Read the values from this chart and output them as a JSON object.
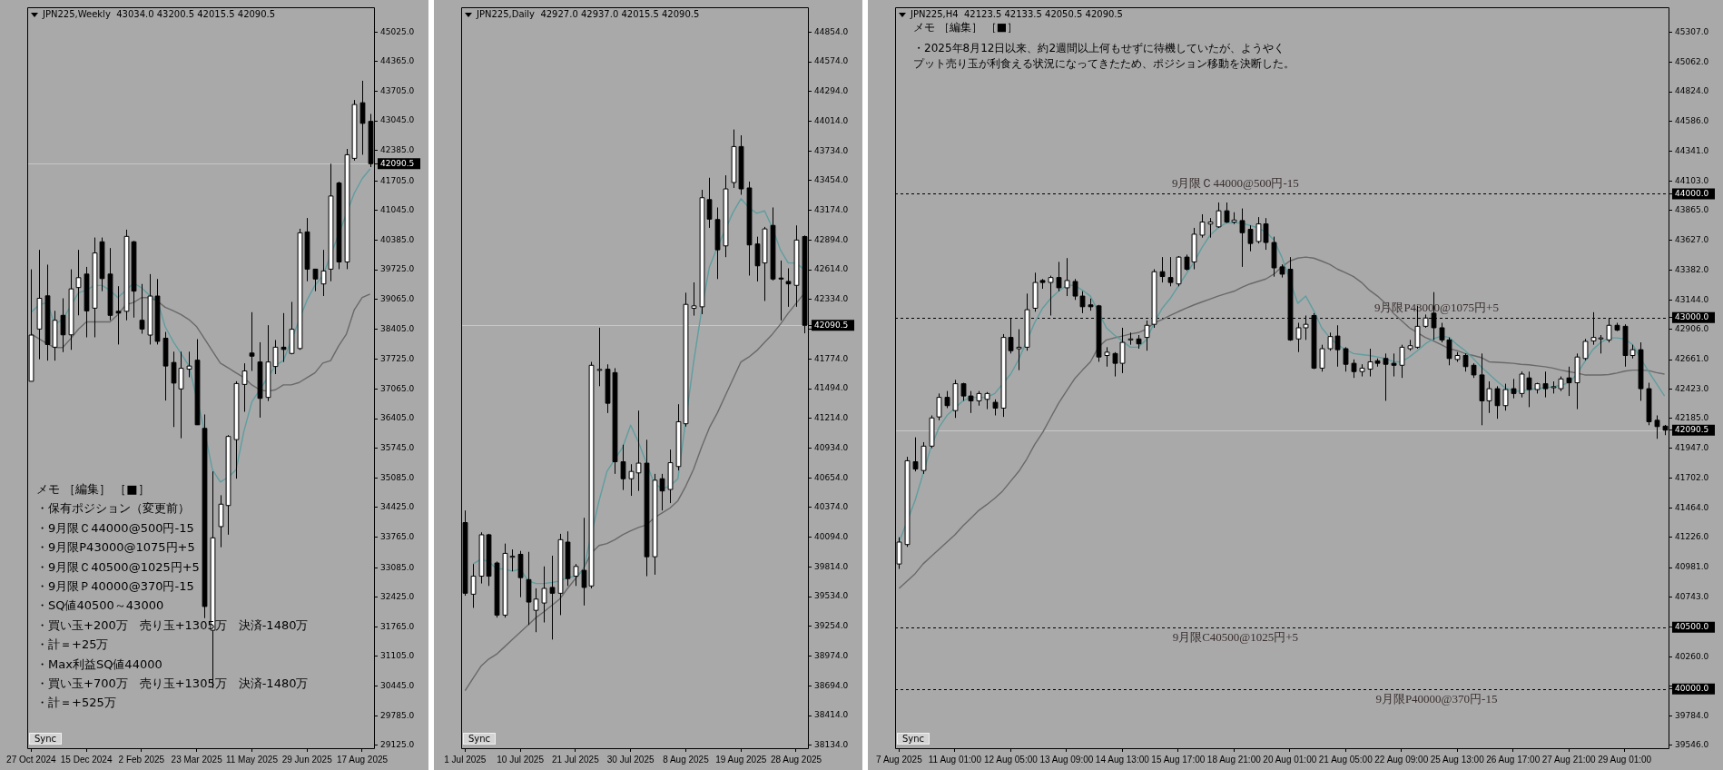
{
  "chart_data": [
    {
      "type": "candlestick",
      "title": "JPN225,Weekly  43034.0 43200.5 42015.5 42090.5",
      "categories": [
        "27 Oct 2024",
        null,
        null,
        null,
        null,
        null,
        null,
        "15 Dec 2024",
        null,
        null,
        null,
        null,
        null,
        null,
        "2 Feb 2025",
        null,
        null,
        null,
        null,
        null,
        null,
        "23 Mar 2025",
        null,
        null,
        null,
        null,
        null,
        null,
        "11 May 2025",
        null,
        null,
        null,
        null,
        null,
        null,
        "29 Jun 2025",
        null,
        null,
        null,
        null,
        null,
        null,
        "17 Aug 2025",
        null
      ],
      "ohlc": [
        [
          37240,
          39735,
          37240,
          38270
        ],
        [
          38405,
          40170,
          37730,
          39090
        ],
        [
          39145,
          39840,
          37700,
          38060
        ],
        [
          38000,
          38810,
          37700,
          38600
        ],
        [
          38710,
          39090,
          37890,
          38275
        ],
        [
          38275,
          39735,
          37940,
          39300
        ],
        [
          39330,
          40170,
          38710,
          39550
        ],
        [
          39630,
          39790,
          38220,
          38810
        ],
        [
          38870,
          40445,
          38220,
          40100
        ],
        [
          40350,
          40445,
          39250,
          39530
        ],
        [
          39630,
          40210,
          38600,
          38710
        ],
        [
          38800,
          39360,
          38060,
          38760
        ],
        [
          38800,
          40620,
          38600,
          40470
        ],
        [
          40350,
          40370,
          38660,
          39250
        ],
        [
          38600,
          39410,
          38300,
          38405
        ],
        [
          38270,
          39630,
          38060,
          39140
        ],
        [
          39140,
          39520,
          38060,
          38130
        ],
        [
          38200,
          38340,
          36810,
          37580
        ],
        [
          37660,
          37900,
          36220,
          37200
        ],
        [
          37070,
          37900,
          35970,
          37530
        ],
        [
          37510,
          37900,
          37330,
          37580
        ],
        [
          37710,
          38180,
          36270,
          36270
        ],
        [
          36190,
          36500,
          31960,
          32220
        ],
        [
          31690,
          35230,
          30400,
          33750
        ],
        [
          34000,
          34700,
          33540,
          34500
        ],
        [
          34470,
          36040,
          33820,
          36010
        ],
        [
          35940,
          37240,
          35070,
          37190
        ],
        [
          37170,
          37640,
          36560,
          37470
        ],
        [
          37870,
          38780,
          37470,
          37800
        ],
        [
          37670,
          38110,
          36430,
          36860
        ],
        [
          36880,
          38490,
          36800,
          37670
        ],
        [
          37570,
          38160,
          37400,
          38000
        ],
        [
          38000,
          38760,
          37670,
          37950
        ],
        [
          37860,
          39010,
          37840,
          38400
        ],
        [
          37970,
          40640,
          37940,
          40550
        ],
        [
          40570,
          40880,
          39470,
          39740
        ],
        [
          39740,
          39740,
          39250,
          39520
        ],
        [
          39410,
          40170,
          39140,
          39700
        ],
        [
          39740,
          42090,
          39470,
          41370
        ],
        [
          41660,
          41690,
          39740,
          39900
        ],
        [
          39900,
          42420,
          39740,
          42290
        ],
        [
          42210,
          43510,
          42160,
          43410
        ],
        [
          43450,
          43940,
          42290,
          42990
        ],
        [
          43034,
          43200.5,
          42015.5,
          42090.5
        ]
      ],
      "series": [
        {
          "type": "line",
          "color": "#5f9ea0",
          "values": [
            38782,
            38944,
            38998,
            38511,
            38619,
            null,
            39215,
            39269,
            39377,
            39377,
            39269,
            39106,
            null,
            39431,
            39323,
            39161,
            39052,
            38457,
            38133,
            37862,
            37592,
            null,
            36131,
            35265,
            34995,
            35103,
            35265,
            36131,
            36780,
            null,
            null,
            37592,
            37700,
            null,
            null,
            39052,
            39377,
            39593,
            null,
            null,
            null,
            41433,
            41757,
            41974
          ]
        },
        {
          "type": "line",
          "color": "#696969",
          "values": [
            38295,
            38187,
            38079,
            37992,
            37992,
            38187,
            38403,
            38565,
            38565,
            38565,
            38565,
            38728,
            38944,
            38998,
            39106,
            39106,
            39031,
            38890,
            38814,
            38728,
            38619,
            38457,
            38187,
            37916,
            37646,
            37538,
            37429,
            37321,
            37159,
            37051,
            37018,
            37051,
            37159,
            37159,
            37213,
            37321,
            37429,
            37646,
            37700,
            38025,
            38295,
            38836,
            39106,
            39182
          ]
        }
      ],
      "ylim": [
        29060,
        45570
      ],
      "yticks": [
        {
          "value": 45025,
          "label": "45025.0"
        },
        {
          "value": 44365,
          "label": "44365.0"
        },
        {
          "value": 43705,
          "label": "43705.0"
        },
        {
          "value": 43045,
          "label": "43045.0"
        },
        {
          "value": 42385,
          "label": "42385.0"
        },
        {
          "value": 42090.5,
          "label": "42090.5"
        },
        {
          "value": 41705,
          "label": "41705.0"
        },
        {
          "value": 41045,
          "label": "41045.0"
        },
        {
          "value": 40385,
          "label": "40385.0"
        },
        {
          "value": 39725,
          "label": "39725.0"
        },
        {
          "value": 39065,
          "label": "39065.0"
        },
        {
          "value": 38405,
          "label": "38405.0"
        },
        {
          "value": 37725,
          "label": "37725.0"
        },
        {
          "value": 37065,
          "label": "37065.0"
        },
        {
          "value": 36405,
          "label": "36405.0"
        },
        {
          "value": 35745,
          "label": "35745.0"
        },
        {
          "value": 35085,
          "label": "35085.0"
        },
        {
          "value": 34425,
          "label": "34425.0"
        },
        {
          "value": 33765,
          "label": "33765.0"
        },
        {
          "value": 33085,
          "label": "33085.0"
        },
        {
          "value": 32425,
          "label": "32425.0"
        },
        {
          "value": 31765,
          "label": "31765.0"
        },
        {
          "value": 31105,
          "label": "31105.0"
        },
        {
          "value": 30445,
          "label": "30445.0"
        },
        {
          "value": 29785,
          "label": "29785.0"
        },
        {
          "value": 29125,
          "label": "29125.0"
        }
      ],
      "ref_lines": [
        {
          "axis": "y",
          "value": 42090.5,
          "color": "#c8c8c8",
          "line_style": "solid"
        }
      ],
      "annotations": [
        "メモ ［編集］ ［■］",
        "・保有ポジション（変更前）",
        "・9月限Ｃ44000@500円-15",
        "・9月限P43000@1075円+5",
        "・9月限Ｃ40500@1025円+5",
        "・9月限Ｐ40000@370円-15",
        "・SQ値40500～43000",
        "・買い玉+200万　売り玉+1305万　決済-1480万",
        "・計＝+25万",
        "・Max利益SQ値44000",
        "・買い玉+700万　売り玉+1305万　決済-1480万",
        "・計＝+525万",
        "Sync"
      ]
    },
    {
      "type": "candlestick",
      "title": "JPN225,Daily  42927.0 42937.0 42015.5 42090.5",
      "categories": [
        "1 Jul 2025",
        null,
        null,
        null,
        null,
        null,
        null,
        "10 Jul 2025",
        null,
        null,
        null,
        null,
        null,
        null,
        "21 Jul 2025",
        null,
        null,
        null,
        null,
        null,
        null,
        "30 Jul 2025",
        null,
        null,
        null,
        null,
        null,
        null,
        "8 Aug 2025",
        null,
        null,
        null,
        null,
        null,
        null,
        "19 Aug 2025",
        null,
        null,
        null,
        null,
        null,
        null,
        "28 Aug 2025",
        null
      ],
      "ohlc": [
        [
          40232,
          40346,
          39543,
          39566
        ],
        [
          39557,
          39841,
          39428,
          39727
        ],
        [
          39727,
          40140,
          39658,
          40117
        ],
        [
          40117,
          40126,
          39635,
          39727
        ],
        [
          39851,
          39865,
          39337,
          39360
        ],
        [
          39360,
          40034,
          39337,
          39942
        ],
        [
          39905,
          39979,
          39773,
          39915
        ],
        [
          39933,
          39965,
          39529,
          39713
        ],
        [
          39695,
          39956,
          39268,
          39483
        ],
        [
          39405,
          39612,
          39199,
          39511
        ],
        [
          39474,
          39819,
          39291,
          39612
        ],
        [
          39621,
          39920,
          39130,
          39566
        ],
        [
          39566,
          40126,
          39360,
          40071
        ],
        [
          40048,
          40149,
          39635,
          39704
        ],
        [
          39727,
          39841,
          39635,
          39819
        ],
        [
          39782,
          40277,
          39451,
          39621
        ],
        [
          39635,
          41746,
          39612,
          41714
        ],
        [
          41670,
          42068,
          41517,
          41675
        ],
        [
          41677,
          41723,
          41264,
          41356
        ],
        [
          41645,
          41687,
          40691,
          40805
        ],
        [
          40805,
          40966,
          40539,
          40645
        ],
        [
          40645,
          40782,
          40484,
          40714
        ],
        [
          40700,
          41287,
          40530,
          40792
        ],
        [
          40792,
          41012,
          39727,
          39910
        ],
        [
          39910,
          40691,
          39741,
          40631
        ],
        [
          40645,
          40691,
          40346,
          40530
        ],
        [
          40544,
          40920,
          40415,
          40796
        ],
        [
          40760,
          41347,
          40723,
          41182
        ],
        [
          41163,
          42398,
          41136,
          42288
        ],
        [
          42251,
          42495,
          42182,
          42274
        ],
        [
          42265,
          43367,
          42196,
          43293
        ],
        [
          43275,
          43481,
          43009,
          43091
        ],
        [
          43087,
          43201,
          42527,
          42802
        ],
        [
          42839,
          43504,
          42733,
          43376
        ],
        [
          43436,
          43936,
          43385,
          43775
        ],
        [
          43775,
          43881,
          43321,
          43376
        ],
        [
          43385,
          43445,
          42559,
          42848
        ],
        [
          42857,
          42926,
          42504,
          42651
        ],
        [
          42678,
          43018,
          42320,
          42999
        ],
        [
          43032,
          43201,
          42513,
          42527
        ],
        [
          42536,
          42701,
          42137,
          42527
        ],
        [
          42504,
          42628,
          42265,
          42481
        ],
        [
          42467,
          43032,
          42265,
          42894
        ],
        [
          42927,
          42937,
          42015.5,
          42090.5
        ]
      ],
      "series": [
        {
          "type": "line",
          "color": "#5f9ea0",
          "values": [
            null,
            39842,
            39887,
            39864,
            39796,
            39796,
            39773,
            39796,
            39681,
            39658,
            39658,
            39667,
            39681,
            39713,
            39727,
            39784,
            null,
            40438,
            40714,
            null,
            40943,
            41150,
            40989,
            null,
            40599,
            40553,
            40576,
            40645,
            null,
            41746,
            42228,
            42641,
            42825,
            null,
            43155,
            43284,
            43201,
            43146,
            43169,
            43009,
            42802,
            42678,
            42678,
            42618
          ]
        },
        {
          "type": "line",
          "color": "#696969",
          "values": [
            38648,
            38763,
            38878,
            38946,
            38992,
            39061,
            39130,
            39199,
            39268,
            39337,
            39392,
            39451,
            39511,
            39612,
            39704,
            39796,
            39943,
            40016,
            40034,
            40071,
            40117,
            40154,
            40186,
            40209,
            40277,
            40323,
            40369,
            40438,
            40576,
            40737,
            40943,
            41127,
            41264,
            41425,
            41586,
            41746,
            41792,
            41852,
            41930,
            42008,
            42100,
            42205,
            42297,
            42389
          ]
        }
      ],
      "ylim": [
        38106,
        45084
      ],
      "yticks": [
        {
          "value": 44854,
          "label": "44854.0"
        },
        {
          "value": 44574,
          "label": "44574.0"
        },
        {
          "value": 44294,
          "label": "44294.0"
        },
        {
          "value": 44014,
          "label": "44014.0"
        },
        {
          "value": 43734,
          "label": "43734.0"
        },
        {
          "value": 43454,
          "label": "43454.0"
        },
        {
          "value": 43174,
          "label": "43174.0"
        },
        {
          "value": 42894,
          "label": "42894.0"
        },
        {
          "value": 42614,
          "label": "42614.0"
        },
        {
          "value": 42334,
          "label": "42334.0"
        },
        {
          "value": 42090.5,
          "label": "42090.5"
        },
        {
          "value": 42054,
          "label": null
        },
        {
          "value": 41774,
          "label": "41774.0"
        },
        {
          "value": 41494,
          "label": "41494.0"
        },
        {
          "value": 41214,
          "label": "41214.0"
        },
        {
          "value": 40934,
          "label": "40934.0"
        },
        {
          "value": 40654,
          "label": "40654.0"
        },
        {
          "value": 40374,
          "label": "40374.0"
        },
        {
          "value": 40094,
          "label": "40094.0"
        },
        {
          "value": 39814,
          "label": "39814.0"
        },
        {
          "value": 39534,
          "label": "39534.0"
        },
        {
          "value": 39254,
          "label": "39254.0"
        },
        {
          "value": 38974,
          "label": "38974.0"
        },
        {
          "value": 38694,
          "label": "38694.0"
        },
        {
          "value": 38414,
          "label": "38414.0"
        },
        {
          "value": 38134,
          "label": "38134.0"
        }
      ],
      "ref_lines": [
        {
          "axis": "y",
          "value": 42090.5,
          "color": "#c8c8c8",
          "line_style": "solid"
        }
      ],
      "annotations": [
        "Sync"
      ]
    },
    {
      "type": "candlestick",
      "title": "JPN225,H4  42123.5 42133.5 42050.5 42090.5",
      "categories": [
        "7 Aug 2025",
        null,
        null,
        null,
        null,
        null,
        null,
        "11 Aug 01:00",
        null,
        null,
        null,
        null,
        null,
        null,
        "12 Aug 05:00",
        null,
        null,
        null,
        null,
        null,
        null,
        "13 Aug 09:00",
        null,
        null,
        null,
        null,
        null,
        null,
        "14 Aug 13:00",
        null,
        null,
        null,
        null,
        null,
        null,
        "15 Aug 17:00",
        null,
        null,
        null,
        null,
        null,
        null,
        "18 Aug 21:00",
        null,
        null,
        null,
        null,
        null,
        null,
        "20 Aug 01:00",
        null,
        null,
        null,
        null,
        null,
        null,
        "21 Aug 05:00",
        null,
        null,
        null,
        null,
        null,
        null,
        "22 Aug 09:00",
        null,
        null,
        null,
        null,
        null,
        null,
        "25 Aug 13:00",
        null,
        null,
        null,
        null,
        null,
        null,
        "26 Aug 17:00",
        null,
        null,
        null,
        null,
        null,
        null,
        "27 Aug 21:00",
        null,
        null,
        null,
        null,
        null,
        null,
        "29 Aug 01:00",
        null,
        null,
        null,
        null,
        null
      ],
      "ohlc": [
        [
          41010,
          41226,
          40970,
          41187
        ],
        [
          41167,
          41876,
          41148,
          41844
        ],
        [
          41836,
          42033,
          41758,
          41777
        ],
        [
          41765,
          41994,
          41738,
          41962
        ],
        [
          41962,
          42210,
          41946,
          42190
        ],
        [
          42198,
          42387,
          42171,
          42356
        ],
        [
          42356,
          42407,
          42269,
          42289
        ],
        [
          42249,
          42497,
          42190,
          42466
        ],
        [
          42466,
          42474,
          42328,
          42367
        ],
        [
          42367,
          42407,
          42230,
          42328
        ],
        [
          42328,
          42407,
          42289,
          42387
        ],
        [
          42340,
          42399,
          42261,
          42387
        ],
        [
          42316,
          42340,
          42210,
          42269
        ],
        [
          42269,
          42867,
          42198,
          42840
        ],
        [
          42840,
          42997,
          42710,
          42733
        ],
        [
          42749,
          42906,
          42576,
          42761
        ],
        [
          42761,
          43194,
          42733,
          43064
        ],
        [
          43076,
          43363,
          43048,
          43284
        ],
        [
          43300,
          43312,
          43233,
          43284
        ],
        [
          43284,
          43339,
          43017,
          43324
        ],
        [
          43324,
          43450,
          43213,
          43241
        ],
        [
          43241,
          43481,
          43174,
          43300
        ],
        [
          43292,
          43312,
          43143,
          43174
        ],
        [
          43174,
          43213,
          43036,
          43088
        ],
        [
          43103,
          43154,
          43056,
          43088
        ],
        [
          43095,
          43103,
          42643,
          42682
        ],
        [
          42694,
          42761,
          42604,
          42721
        ],
        [
          42710,
          42721,
          42525,
          42631
        ],
        [
          42631,
          42918,
          42552,
          42800
        ],
        [
          42820,
          42879,
          42781,
          42828
        ],
        [
          42828,
          42859,
          42749,
          42788
        ],
        [
          42840,
          42977,
          42733,
          42938
        ],
        [
          42946,
          43391,
          42918,
          43371
        ],
        [
          43371,
          43489,
          43284,
          43332
        ],
        [
          43324,
          43489,
          43253,
          43284
        ],
        [
          43272,
          43497,
          43253,
          43489
        ],
        [
          43489,
          43509,
          43379,
          43391
        ],
        [
          43450,
          43725,
          43391,
          43674
        ],
        [
          43666,
          43835,
          43646,
          43772
        ],
        [
          43756,
          43804,
          43646,
          43772
        ],
        [
          43733,
          43930,
          43725,
          43863
        ],
        [
          43863,
          43930,
          43764,
          43772
        ],
        [
          43772,
          43851,
          43756,
          43788
        ],
        [
          43784,
          43882,
          43410,
          43686
        ],
        [
          43713,
          43745,
          43536,
          43599
        ],
        [
          43615,
          43812,
          43599,
          43757
        ],
        [
          43757,
          43804,
          43548,
          43607
        ],
        [
          43607,
          43654,
          43331,
          43402
        ],
        [
          43410,
          43430,
          43324,
          43351
        ],
        [
          43391,
          43489,
          42812,
          42820
        ],
        [
          42828,
          42958,
          42722,
          42918
        ],
        [
          42918,
          43017,
          42820,
          42946
        ],
        [
          43017,
          43036,
          42584,
          42592
        ],
        [
          42592,
          42781,
          42564,
          42749
        ],
        [
          42749,
          42879,
          42733,
          42847
        ],
        [
          42851,
          42938,
          42604,
          42741
        ],
        [
          42749,
          42761,
          42564,
          42623
        ],
        [
          42631,
          42662,
          42513,
          42564
        ],
        [
          42564,
          42623,
          42525,
          42592
        ],
        [
          42584,
          42749,
          42525,
          42643
        ],
        [
          42651,
          42670,
          42604,
          42631
        ],
        [
          42670,
          42710,
          42328,
          42623
        ],
        [
          42631,
          42710,
          42525,
          42615
        ],
        [
          42615,
          42781,
          42513,
          42761
        ],
        [
          42749,
          42820,
          42733,
          42773
        ],
        [
          42761,
          43095,
          42749,
          42930
        ],
        [
          42930,
          43025,
          42918,
          42997
        ],
        [
          43036,
          43206,
          42820,
          42918
        ],
        [
          42918,
          42958,
          42800,
          42820
        ],
        [
          42820,
          42840,
          42615,
          42670
        ],
        [
          42662,
          42722,
          42643,
          42694
        ],
        [
          42694,
          42710,
          42564,
          42604
        ],
        [
          42615,
          42631,
          42513,
          42537
        ],
        [
          42537,
          42710,
          42131,
          42328
        ],
        [
          42328,
          42485,
          42230,
          42426
        ],
        [
          42426,
          42446,
          42183,
          42289
        ],
        [
          42289,
          42466,
          42249,
          42419
        ],
        [
          42426,
          42505,
          42348,
          42387
        ],
        [
          42387,
          42564,
          42356,
          42544
        ],
        [
          42513,
          42564,
          42277,
          42419
        ],
        [
          42419,
          42474,
          42387,
          42466
        ],
        [
          42466,
          42564,
          42356,
          42426
        ],
        [
          42434,
          42485,
          42387,
          42442
        ],
        [
          42426,
          42525,
          42407,
          42505
        ],
        [
          42513,
          42604,
          42367,
          42474
        ],
        [
          42474,
          42710,
          42261,
          42682
        ],
        [
          42670,
          42828,
          42655,
          42808
        ],
        [
          42812,
          43044,
          42781,
          42840
        ],
        [
          42828,
          42859,
          42710,
          42836
        ],
        [
          42820,
          42997,
          42800,
          42938
        ],
        [
          42938,
          42958,
          42891,
          42899
        ],
        [
          42930,
          42946,
          42604,
          42694
        ],
        [
          42694,
          42781,
          42670,
          42741
        ],
        [
          42741,
          42800,
          42328,
          42426
        ],
        [
          42426,
          42474,
          42131,
          42159
        ],
        [
          42171,
          42210,
          42021,
          42120
        ],
        [
          42123.5,
          42133.5,
          42050.5,
          42090.5
        ]
      ],
      "series": [
        {
          "type": "line",
          "color": "#5f9ea0",
          "values": [
            41187,
            null,
            41521,
            41738,
            41954,
            42112,
            42210,
            42269,
            42328,
            42356,
            42356,
            42356,
            42387,
            42466,
            42544,
            42662,
            null,
            42958,
            43076,
            43154,
            43213,
            43261,
            43261,
            43221,
            43174,
            null,
            42918,
            42859,
            42812,
            42761,
            42761,
            42820,
            42958,
            43076,
            43154,
            43253,
            43351,
            43449,
            43568,
            43666,
            43725,
            43764,
            43764,
            43764,
            43745,
            43725,
            43693,
            43627,
            43489,
            null,
            43115,
            43174,
            43056,
            42918,
            42840,
            42781,
            42741,
            42710,
            42702,
            42694,
            42682,
            42670,
            42643,
            42643,
            42682,
            42733,
            42788,
            42828,
            42851,
            42840,
            42781,
            42733,
            42670,
            42603,
            42544,
            42485,
            42434,
            42407,
            42407,
            42419,
            42426,
            42434,
            42442,
            42454,
            42474,
            42544,
            42643,
            42741,
            42800,
            42836,
            42836,
            42828,
            42781,
            null,
            42564,
            42466,
            42367
          ]
        },
        {
          "type": "line",
          "color": "#696969",
          "values": [
            40813,
            40872,
            40931,
            41010,
            41069,
            41128,
            41187,
            41246,
            41317,
            41380,
            41443,
            41490,
            41541,
            41600,
            41679,
            41757,
            41856,
            41974,
            42072,
            42190,
            42308,
            42407,
            42505,
            42576,
            42643,
            42761,
            42820,
            42836,
            42851,
            42867,
            42879,
            42906,
            42958,
            42985,
            43017,
            43048,
            43076,
            43103,
            43127,
            43150,
            43174,
            43194,
            43213,
            43245,
            43272,
            43292,
            43312,
            43351,
            43410,
            43457,
            43481,
            43489,
            43481,
            43457,
            43430,
            43391,
            43363,
            43331,
            43284,
            43221,
            43174,
            43115,
            43036,
            42977,
            42918,
            42879,
            42840,
            42812,
            42781,
            42749,
            42733,
            42710,
            42694,
            42678,
            42643,
            42639,
            42635,
            42631,
            42623,
            42619,
            42611,
            42603,
            42592,
            42576,
            42564,
            42552,
            42537,
            42537,
            42537,
            42540,
            42552,
            42568,
            42576,
            42576,
            42572,
            42556,
            42544
          ]
        }
      ],
      "ylim": [
        39522,
        45504
      ],
      "yticks": [
        {
          "value": 45307,
          "label": "45307.0"
        },
        {
          "value": 45062,
          "label": "45062.0"
        },
        {
          "value": 44824,
          "label": "44824.0"
        },
        {
          "value": 44586,
          "label": "44586.0"
        },
        {
          "value": 44341,
          "label": "44341.0"
        },
        {
          "value": 44103,
          "label": "44103.0"
        },
        {
          "value": 44000,
          "label": "44000.0"
        },
        {
          "value": 43865,
          "label": "43865.0"
        },
        {
          "value": 43627,
          "label": "43627.0"
        },
        {
          "value": 43382,
          "label": "43382.0"
        },
        {
          "value": 43144,
          "label": "43144.0"
        },
        {
          "value": 43000,
          "label": "43000.0"
        },
        {
          "value": 42906,
          "label": "42906.0"
        },
        {
          "value": 42661,
          "label": "42661.0"
        },
        {
          "value": 42423,
          "label": "42423.0"
        },
        {
          "value": 42185,
          "label": "42185.0"
        },
        {
          "value": 42090.5,
          "label": "42090.5"
        },
        {
          "value": 41947,
          "label": "41947.0"
        },
        {
          "value": 41702,
          "label": "41702.0"
        },
        {
          "value": 41464,
          "label": "41464.0"
        },
        {
          "value": 41226,
          "label": "41226.0"
        },
        {
          "value": 40981,
          "label": "40981.0"
        },
        {
          "value": 40743,
          "label": "40743.0"
        },
        {
          "value": 40502,
          "label": null
        },
        {
          "value": 40500,
          "label": "40500.0"
        },
        {
          "value": 40260,
          "label": "40260.0"
        },
        {
          "value": 40022,
          "label": null
        },
        {
          "value": 40000,
          "label": "40000.0"
        },
        {
          "value": 39784,
          "label": "39784.0"
        },
        {
          "value": 39546,
          "label": "39546.0"
        }
      ],
      "ref_lines": [
        {
          "axis": "y",
          "value": 42090.5,
          "color": "#c8c8c8",
          "line_style": "solid"
        },
        {
          "axis": "y",
          "value": 44000,
          "label": "9月限Ｃ44000@500円-15",
          "color": "#000000",
          "line_style": "dashed"
        },
        {
          "axis": "y",
          "value": 43000,
          "label": "9月限P43000@1075円+5",
          "color": "#000000",
          "line_style": "dashed"
        },
        {
          "axis": "y",
          "value": 40500,
          "label": "9月限C40500@1025円+5",
          "color": "#000000",
          "line_style": "dashed"
        },
        {
          "axis": "y",
          "value": 40000,
          "label": "9月限P40000@370円-15",
          "color": "#000000",
          "line_style": "dashed"
        }
      ],
      "annotations": [
        "メモ ［編集］ ［■］",
        "・2025年8月12日以来、約2週間以上何もせずに待機していたが、ようやくプット売り玉が利食える状況になってきたため、ポジション移動を決断した。",
        "Sync"
      ]
    }
  ]
}
